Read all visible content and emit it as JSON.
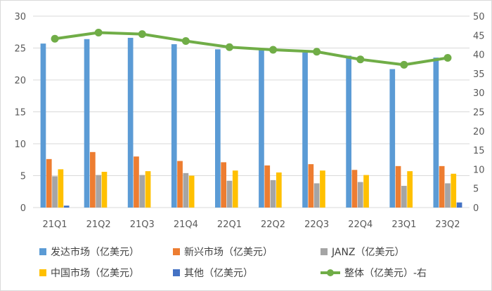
{
  "chart_data": {
    "type": "bar",
    "categories": [
      "21Q1",
      "21Q2",
      "21Q3",
      "21Q4",
      "22Q1",
      "22Q2",
      "22Q3",
      "22Q4",
      "23Q1",
      "23Q2"
    ],
    "series": [
      {
        "name": "发达市场（亿美元）",
        "color": "#5b9bd5",
        "axis": "left",
        "values": [
          25.7,
          26.4,
          26.6,
          25.6,
          24.8,
          24.9,
          24.3,
          23.8,
          21.7,
          23.5
        ]
      },
      {
        "name": "新兴市场（亿美元）",
        "color": "#ed7d31",
        "axis": "left",
        "values": [
          7.6,
          8.7,
          8.0,
          7.3,
          7.1,
          6.6,
          6.8,
          5.9,
          6.5,
          6.5
        ]
      },
      {
        "name": "JANZ（亿美元）",
        "color": "#a5a5a5",
        "axis": "left",
        "values": [
          4.9,
          5.1,
          5.1,
          5.4,
          4.2,
          4.3,
          3.8,
          4.0,
          3.4,
          3.8
        ]
      },
      {
        "name": "中国市场（亿美元）",
        "color": "#ffc000",
        "axis": "left",
        "values": [
          6.0,
          5.6,
          5.7,
          5.0,
          5.8,
          5.5,
          5.8,
          5.1,
          5.7,
          5.3
        ]
      },
      {
        "name": "其他（亿美元）",
        "color": "#4472c4",
        "axis": "left",
        "values": [
          0.3,
          0,
          0,
          0,
          0,
          0,
          0,
          0,
          0,
          0.8
        ]
      },
      {
        "name": "整体（亿美元）-右",
        "color": "#70ad47",
        "axis": "right",
        "type": "line",
        "values": [
          44.1,
          45.7,
          45.3,
          43.5,
          41.9,
          41.2,
          40.7,
          38.7,
          37.3,
          39.1
        ]
      }
    ],
    "ylim": [
      0,
      30
    ],
    "yticks": [
      0,
      5,
      10,
      15,
      20,
      25,
      30
    ],
    "y2lim": [
      0,
      50
    ],
    "y2ticks": [
      0,
      5,
      10,
      15,
      20,
      25,
      30,
      35,
      40,
      45,
      50
    ],
    "grid": true,
    "legend": "bottom"
  }
}
